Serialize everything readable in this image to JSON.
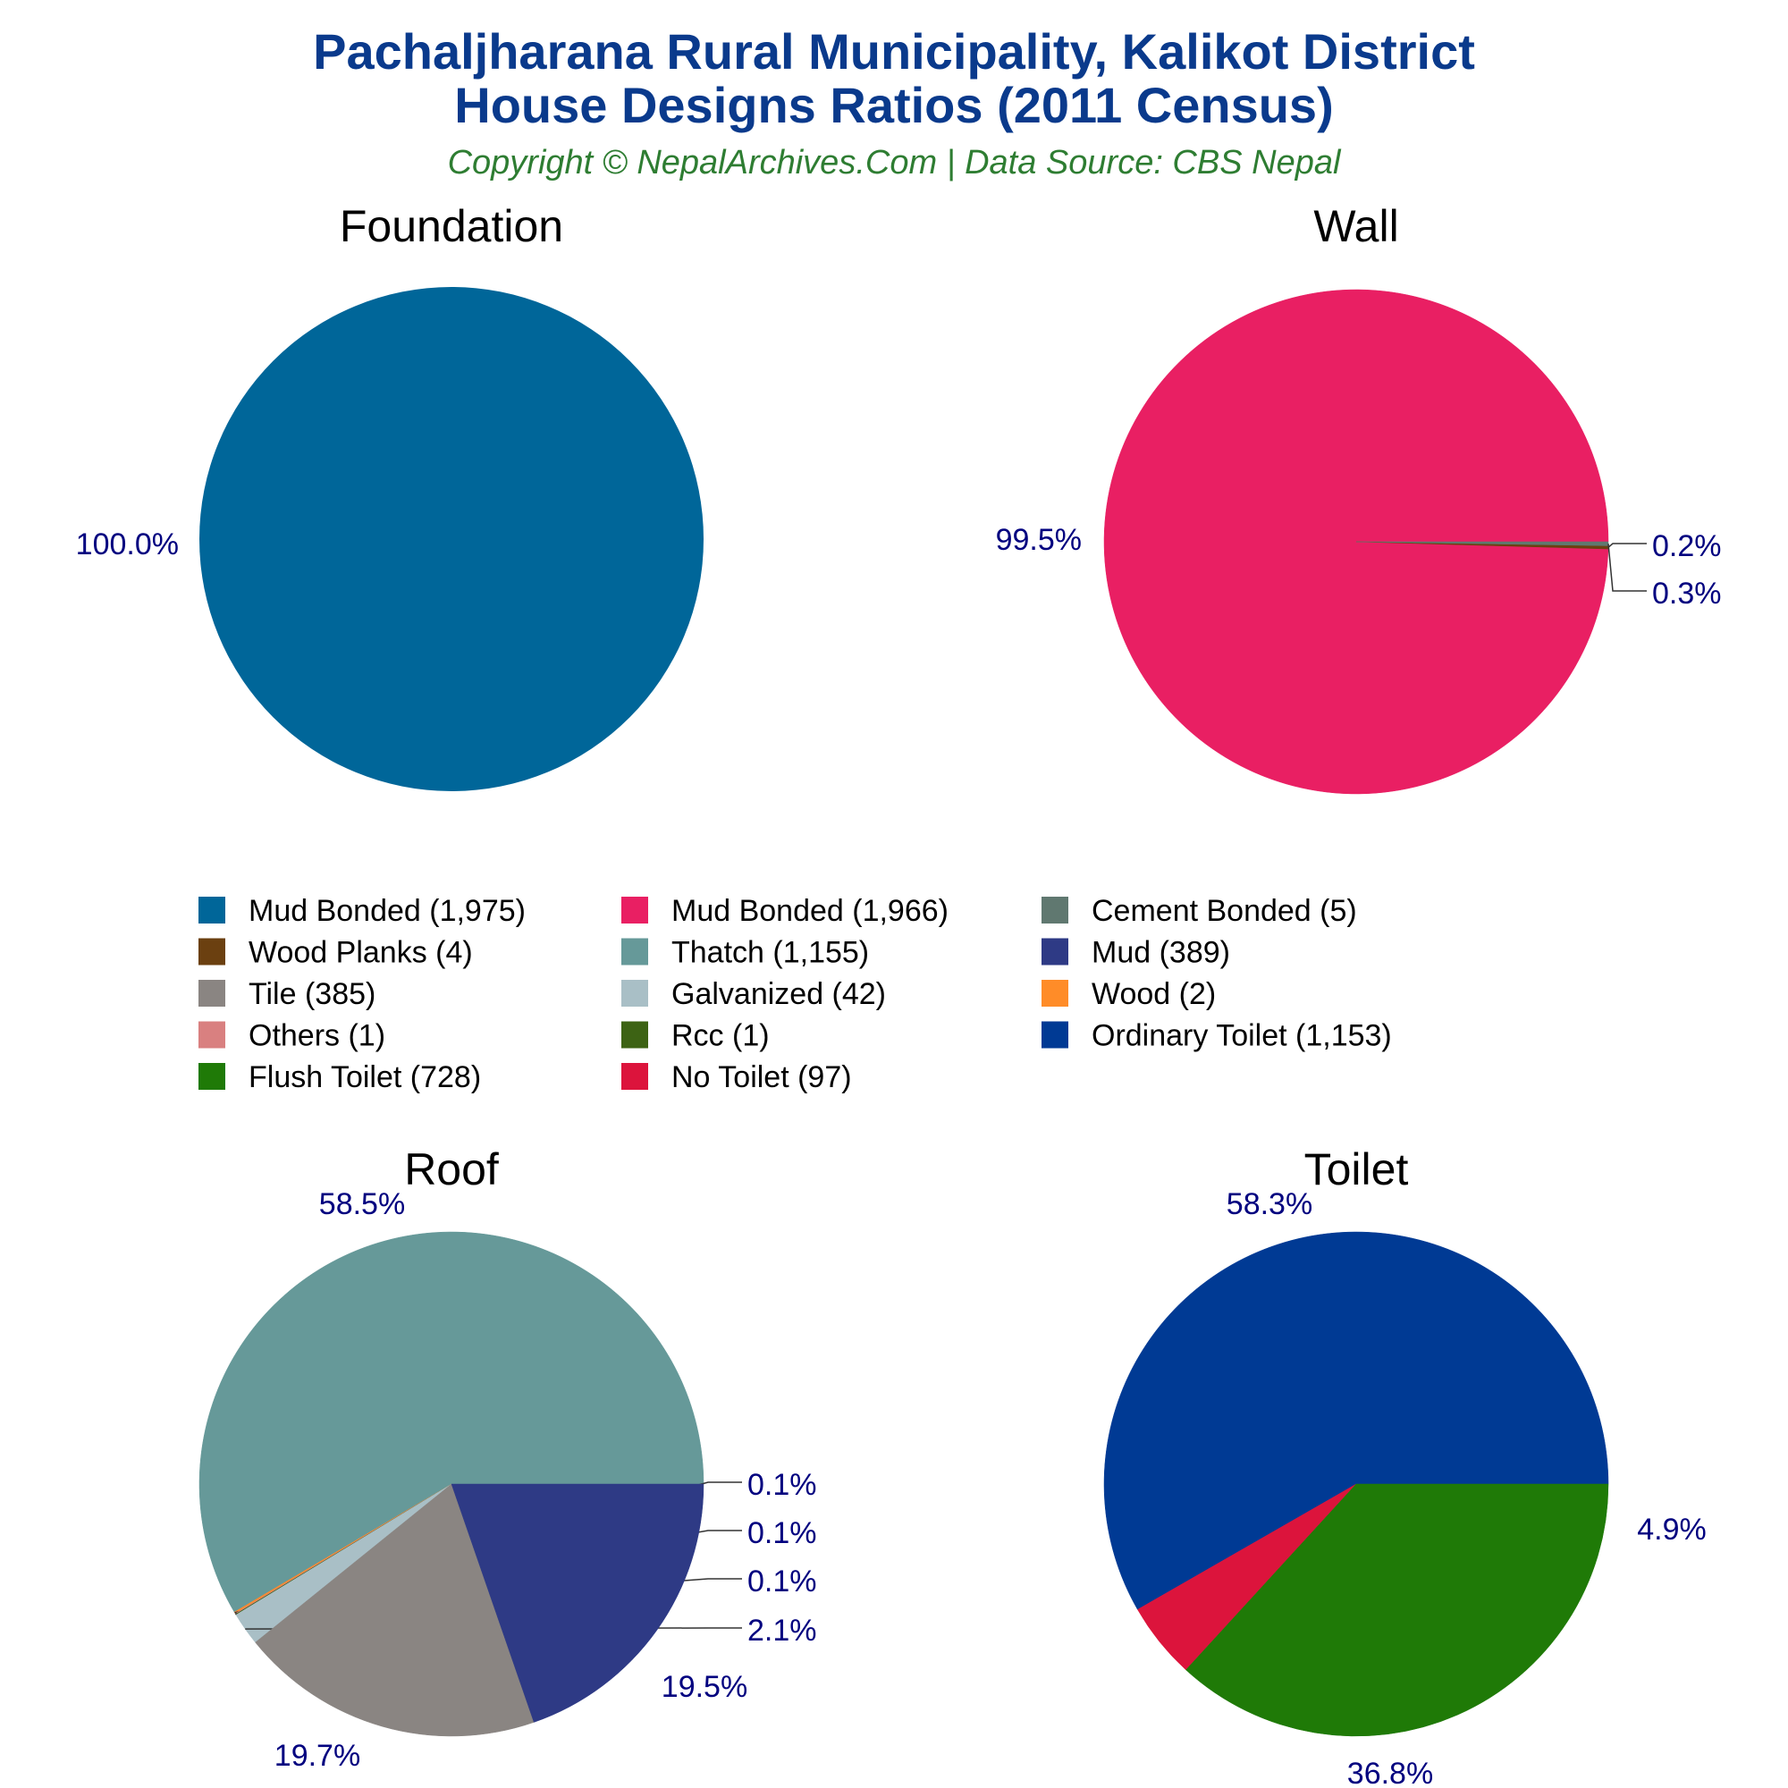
{
  "header": {
    "title_line1": "Pachaljharana Rural Municipality, Kalikot District",
    "title_line2": "House Designs Ratios (2011 Census)",
    "subtitle": "Copyright © NepalArchives.Com | Data Source: CBS Nepal",
    "title_color": "#0a3a8c",
    "subtitle_color": "#2e7d32"
  },
  "label_color": "#00007f",
  "chart_data": [
    {
      "type": "pie",
      "title": "Foundation",
      "slices": [
        {
          "label": "Mud Bonded",
          "value": 1975,
          "pct_label": "100.0%",
          "color": "#006699"
        }
      ]
    },
    {
      "type": "pie",
      "title": "Wall",
      "slices": [
        {
          "label": "Mud Bonded",
          "value": 1966,
          "pct_label": "99.5%",
          "color": "#e91f63"
        },
        {
          "label": "Wood Planks",
          "value": 4,
          "pct_label": "0.2%",
          "color": "#6b4010"
        },
        {
          "label": "Cement Bonded",
          "value": 5,
          "pct_label": "0.3%",
          "color": "#607870"
        }
      ]
    },
    {
      "type": "pie",
      "title": "Roof",
      "slices": [
        {
          "label": "Thatch",
          "value": 1155,
          "pct_label": "58.5%",
          "color": "#669999"
        },
        {
          "label": "Wood",
          "value": 2,
          "pct_label": "0.1%",
          "color": "#ff8c28"
        },
        {
          "label": "Others",
          "value": 1,
          "pct_label": "0.1%",
          "color": "#d98080"
        },
        {
          "label": "Rcc",
          "value": 1,
          "pct_label": "0.1%",
          "color": "#3d6314"
        },
        {
          "label": "Galvanized",
          "value": 42,
          "pct_label": "2.1%",
          "color": "#a9bfc6"
        },
        {
          "label": "Tile",
          "value": 385,
          "pct_label": "19.5%",
          "color": "#8a8582"
        },
        {
          "label": "Mud",
          "value": 389,
          "pct_label": "19.7%",
          "color": "#2e3a85"
        }
      ]
    },
    {
      "type": "pie",
      "title": "Toilet",
      "slices": [
        {
          "label": "Ordinary Toilet",
          "value": 1153,
          "pct_label": "58.3%",
          "color": "#003a94"
        },
        {
          "label": "No Toilet",
          "value": 97,
          "pct_label": "4.9%",
          "color": "#dc143c"
        },
        {
          "label": "Flush Toilet",
          "value": 728,
          "pct_label": "36.8%",
          "color": "#1f7a07"
        }
      ]
    }
  ],
  "legend": [
    {
      "label": "Mud Bonded (1,975)",
      "color": "#006699"
    },
    {
      "label": "Mud Bonded (1,966)",
      "color": "#e91f63"
    },
    {
      "label": "Cement Bonded (5)",
      "color": "#607870"
    },
    {
      "label": "Wood Planks (4)",
      "color": "#6b4010"
    },
    {
      "label": "Thatch (1,155)",
      "color": "#669999"
    },
    {
      "label": "Mud (389)",
      "color": "#2e3a85"
    },
    {
      "label": "Tile (385)",
      "color": "#8a8582"
    },
    {
      "label": "Galvanized (42)",
      "color": "#a9bfc6"
    },
    {
      "label": "Wood (2)",
      "color": "#ff8c28"
    },
    {
      "label": "Others (1)",
      "color": "#d98080"
    },
    {
      "label": "Rcc (1)",
      "color": "#3d6314"
    },
    {
      "label": "Ordinary Toilet (1,153)",
      "color": "#003a94"
    },
    {
      "label": "Flush Toilet (728)",
      "color": "#1f7a07"
    },
    {
      "label": "No Toilet (97)",
      "color": "#dc143c"
    }
  ]
}
